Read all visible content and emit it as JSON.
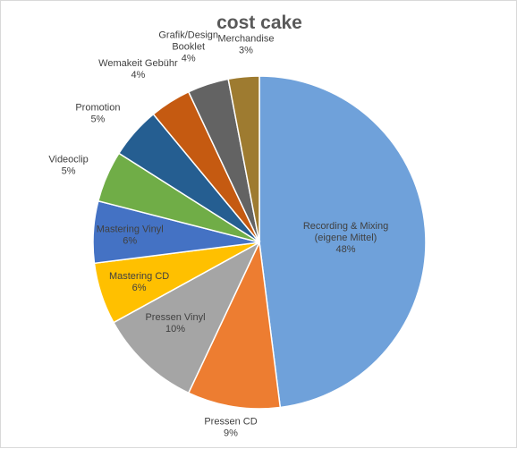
{
  "chart_data": {
    "type": "pie",
    "title": "cost cake",
    "start_angle_deg": 0,
    "direction": "clockwise",
    "slices": [
      {
        "label": [
          "Recording & Mixing",
          "(eigene Mittel)"
        ],
        "percent_label": "48%",
        "value": 48,
        "color": "#6fa1da"
      },
      {
        "label": [
          "Pressen CD"
        ],
        "percent_label": "9%",
        "value": 9,
        "color": "#ed7d31"
      },
      {
        "label": [
          "Pressen Vinyl"
        ],
        "percent_label": "10%",
        "value": 10,
        "color": "#a5a5a5"
      },
      {
        "label": [
          "Mastering CD"
        ],
        "percent_label": "6%",
        "value": 6,
        "color": "#ffc000"
      },
      {
        "label": [
          "Mastering Vinyl"
        ],
        "percent_label": "6%",
        "value": 6,
        "color": "#4472c4"
      },
      {
        "label": [
          "Videoclip"
        ],
        "percent_label": "5%",
        "value": 5,
        "color": "#70ad47"
      },
      {
        "label": [
          "Promotion"
        ],
        "percent_label": "5%",
        "value": 5,
        "color": "#255e91"
      },
      {
        "label": [
          "Wemakeit Gebühr"
        ],
        "percent_label": "4%",
        "value": 4,
        "color": "#c55a11"
      },
      {
        "label": [
          "Grafik/Design",
          "Booklet"
        ],
        "percent_label": "4%",
        "value": 4,
        "color": "#636363"
      },
      {
        "label": [
          "Merchandise"
        ],
        "percent_label": "3%",
        "value": 3,
        "color": "#9e7b30"
      }
    ]
  }
}
